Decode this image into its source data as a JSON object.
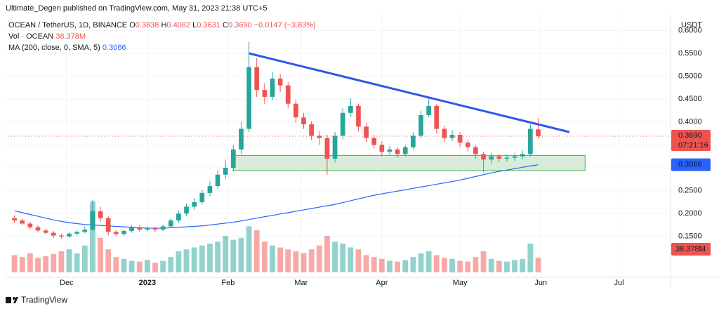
{
  "chart_data": {
    "type": "candlestick",
    "header": "Ultimate_Degen published on TradingView.com, May 31, 2023 21:38 UTC+5",
    "footer": "TradingView",
    "currency": "USDT",
    "legend": {
      "symbol": "OCEAN / TetherUS, 1D, BINANCE",
      "ohlc": [
        {
          "key": "O",
          "value": "0.3838"
        },
        {
          "key": "H",
          "value": "0.4082"
        },
        {
          "key": "L",
          "value": "0.3631"
        },
        {
          "key": "C",
          "value": "0.3690"
        }
      ],
      "change": "−0.0147 (−3.83%)",
      "volume_name": "Vol · OCEAN",
      "volume_value": "38.378M",
      "ma_name": "MA (200, close, 0, SMA, 5)",
      "ma_value": "0.3066"
    },
    "last_price_label": "0.3690",
    "countdown": "07:21:16",
    "up_color": "#26a69a",
    "down_color": "#ef5350",
    "x": [
      -51,
      -48,
      -45,
      -42,
      -39,
      -36,
      -33,
      -30,
      -27,
      -24,
      -21,
      -18,
      -15,
      -12,
      -9,
      -6,
      -3,
      0,
      3,
      6,
      9,
      12,
      15,
      18,
      21,
      24,
      27,
      30,
      33,
      36,
      39,
      42,
      45,
      48,
      51,
      54,
      57,
      60,
      63,
      66,
      69,
      72,
      75,
      78,
      81,
      84,
      87,
      90,
      93,
      96,
      99,
      102,
      105,
      108,
      111,
      114,
      117,
      120,
      123,
      126,
      129,
      132,
      135,
      138,
      141,
      144,
      147,
      150
    ],
    "open": [
      0.19,
      0.185,
      0.178,
      0.17,
      0.163,
      0.158,
      0.152,
      0.15,
      0.156,
      0.16,
      0.165,
      0.205,
      0.19,
      0.16,
      0.155,
      0.162,
      0.17,
      0.165,
      0.168,
      0.165,
      0.172,
      0.185,
      0.2,
      0.215,
      0.225,
      0.245,
      0.26,
      0.285,
      0.3,
      0.34,
      0.385,
      0.52,
      0.47,
      0.455,
      0.495,
      0.48,
      0.44,
      0.41,
      0.395,
      0.37,
      0.365,
      0.32,
      0.37,
      0.42,
      0.435,
      0.39,
      0.365,
      0.35,
      0.335,
      0.34,
      0.33,
      0.345,
      0.37,
      0.415,
      0.435,
      0.385,
      0.365,
      0.372,
      0.355,
      0.345,
      0.33,
      0.318,
      0.325,
      0.32,
      0.322,
      0.325,
      0.33,
      0.3838
    ],
    "high": [
      0.196,
      0.189,
      0.182,
      0.175,
      0.167,
      0.162,
      0.156,
      0.16,
      0.164,
      0.172,
      0.23,
      0.215,
      0.194,
      0.164,
      0.166,
      0.175,
      0.174,
      0.172,
      0.171,
      0.176,
      0.19,
      0.207,
      0.222,
      0.234,
      0.252,
      0.27,
      0.295,
      0.318,
      0.35,
      0.4,
      0.575,
      0.54,
      0.485,
      0.51,
      0.505,
      0.488,
      0.448,
      0.42,
      0.402,
      0.38,
      0.372,
      0.378,
      0.43,
      0.452,
      0.44,
      0.398,
      0.372,
      0.358,
      0.348,
      0.345,
      0.35,
      0.378,
      0.425,
      0.455,
      0.44,
      0.392,
      0.382,
      0.378,
      0.36,
      0.35,
      0.335,
      0.332,
      0.33,
      0.328,
      0.332,
      0.338,
      0.395,
      0.4082
    ],
    "low": [
      0.18,
      0.174,
      0.166,
      0.159,
      0.154,
      0.147,
      0.145,
      0.147,
      0.152,
      0.157,
      0.162,
      0.182,
      0.152,
      0.15,
      0.151,
      0.158,
      0.16,
      0.161,
      0.16,
      0.162,
      0.168,
      0.18,
      0.195,
      0.208,
      0.22,
      0.238,
      0.255,
      0.275,
      0.292,
      0.33,
      0.378,
      0.455,
      0.44,
      0.448,
      0.465,
      0.43,
      0.398,
      0.385,
      0.36,
      0.35,
      0.285,
      0.312,
      0.362,
      0.412,
      0.38,
      0.355,
      0.342,
      0.325,
      0.328,
      0.322,
      0.325,
      0.34,
      0.365,
      0.41,
      0.375,
      0.355,
      0.358,
      0.345,
      0.336,
      0.32,
      0.29,
      0.31,
      0.312,
      0.314,
      0.315,
      0.318,
      0.325,
      0.3631
    ],
    "close": [
      0.185,
      0.178,
      0.17,
      0.163,
      0.158,
      0.152,
      0.15,
      0.156,
      0.16,
      0.165,
      0.205,
      0.19,
      0.16,
      0.155,
      0.162,
      0.17,
      0.165,
      0.168,
      0.165,
      0.172,
      0.185,
      0.2,
      0.215,
      0.225,
      0.245,
      0.26,
      0.285,
      0.3,
      0.34,
      0.385,
      0.52,
      0.47,
      0.455,
      0.495,
      0.48,
      0.44,
      0.41,
      0.395,
      0.37,
      0.365,
      0.32,
      0.37,
      0.42,
      0.435,
      0.39,
      0.365,
      0.35,
      0.335,
      0.34,
      0.33,
      0.345,
      0.37,
      0.415,
      0.435,
      0.385,
      0.365,
      0.372,
      0.355,
      0.345,
      0.33,
      0.318,
      0.325,
      0.32,
      0.322,
      0.325,
      0.33,
      0.385,
      0.369
    ],
    "volume": {
      "values": [
        45,
        40,
        50,
        38,
        42,
        48,
        55,
        60,
        50,
        70,
        185,
        90,
        60,
        40,
        35,
        30,
        28,
        32,
        25,
        30,
        40,
        55,
        60,
        65,
        70,
        75,
        80,
        95,
        85,
        90,
        120,
        110,
        80,
        70,
        65,
        60,
        55,
        50,
        60,
        70,
        95,
        80,
        75,
        65,
        60,
        45,
        40,
        35,
        30,
        28,
        32,
        40,
        50,
        55,
        45,
        38,
        35,
        30,
        28,
        40,
        55,
        35,
        30,
        28,
        32,
        35,
        75,
        38.378
      ],
      "ylim": [
        0,
        673
      ]
    },
    "ma": {
      "color": "#2962ff",
      "values": [
        0.206,
        0.202,
        0.198,
        0.194,
        0.19,
        0.186,
        0.183,
        0.18,
        0.178,
        0.176,
        0.175,
        0.174,
        0.173,
        0.172,
        0.171,
        0.17,
        0.169,
        0.168,
        0.168,
        0.168,
        0.169,
        0.17,
        0.171,
        0.172,
        0.173,
        0.175,
        0.177,
        0.179,
        0.181,
        0.184,
        0.187,
        0.19,
        0.193,
        0.196,
        0.199,
        0.202,
        0.205,
        0.208,
        0.211,
        0.214,
        0.217,
        0.22,
        0.224,
        0.228,
        0.232,
        0.236,
        0.24,
        0.243,
        0.246,
        0.249,
        0.252,
        0.255,
        0.258,
        0.261,
        0.264,
        0.267,
        0.27,
        0.273,
        0.277,
        0.281,
        0.285,
        0.289,
        0.292,
        0.295,
        0.298,
        0.301,
        0.304,
        0.3066
      ]
    },
    "trendline": {
      "color": "#3056e8",
      "x": [
        39,
        162
      ],
      "y": [
        0.55,
        0.378
      ]
    },
    "zone": {
      "color": "#c8e6c9",
      "border": "#4caf50",
      "x": [
        33,
        168
      ],
      "y": [
        0.294,
        0.327
      ]
    },
    "xlim": [
      -54.4,
      200.8
    ],
    "xticks": [
      {
        "value": -31,
        "label": "Dec"
      },
      {
        "value": 0,
        "label": "2023"
      },
      {
        "value": 31,
        "label": "Feb"
      },
      {
        "value": 59,
        "label": "Mar"
      },
      {
        "value": 90,
        "label": "Apr"
      },
      {
        "value": 120,
        "label": "May"
      },
      {
        "value": 151,
        "label": "Jun"
      },
      {
        "value": 181,
        "label": "Jul"
      }
    ],
    "ylim": [
      0.0607,
      0.6359
    ],
    "yticks": [
      {
        "value": 0.15,
        "label": "0.1500"
      },
      {
        "value": 0.2,
        "label": "0.2000"
      },
      {
        "value": 0.25,
        "label": "0.2500"
      },
      {
        "value": 0.3,
        "label": "0.3000"
      },
      {
        "value": 0.35,
        "label": "0.3500"
      },
      {
        "value": 0.4,
        "label": "0.4000"
      },
      {
        "value": 0.45,
        "label": "0.4500"
      },
      {
        "value": 0.5,
        "label": "0.5000"
      },
      {
        "value": 0.55,
        "label": "0.5500"
      },
      {
        "value": 0.6,
        "label": "0.6000"
      }
    ],
    "grid": true
  }
}
